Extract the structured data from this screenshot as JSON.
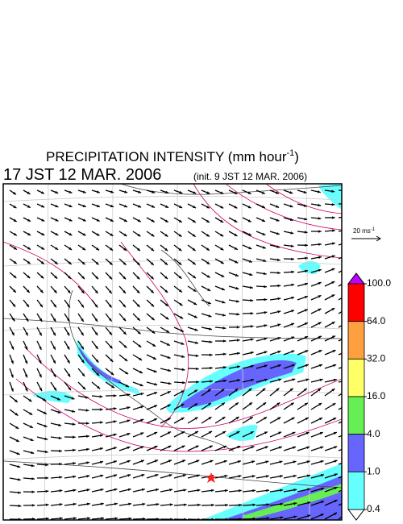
{
  "title": {
    "text": "PRECIPITATION INTENSITY (mm hour",
    "superscript": "-1",
    "close": ")"
  },
  "valid_time": "17 JST 12 MAR. 2006",
  "init_time": "(init. 9 JST 12 MAR. 2006)",
  "vector_key": {
    "text": "20 ms",
    "superscript": "-1"
  },
  "colorbar": {
    "levels": [
      {
        "value": 100,
        "label": "100.0"
      },
      {
        "value": 64,
        "label": "64.0"
      },
      {
        "value": 32,
        "label": "32.0"
      },
      {
        "value": 16,
        "label": "16.0"
      },
      {
        "value": 4,
        "label": "4.0"
      },
      {
        "value": 1,
        "label": "1.0"
      },
      {
        "value": 0.4,
        "label": "0.4"
      }
    ],
    "colors": [
      "#ff0000",
      "#ffa040",
      "#ffff66",
      "#66ee55",
      "#6666ff",
      "#66ffff"
    ],
    "over_color": "#c000ff",
    "under_color": "#ffffff"
  }
}
